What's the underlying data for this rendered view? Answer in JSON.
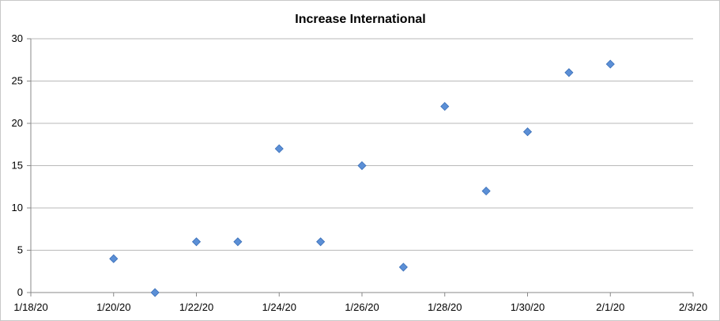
{
  "chart_data": {
    "type": "scatter",
    "title": "Increase International",
    "xlabel": "",
    "ylabel": "",
    "x": [
      "1/20/20",
      "1/21/20",
      "1/22/20",
      "1/23/20",
      "1/24/20",
      "1/25/20",
      "1/26/20",
      "1/27/20",
      "1/28/20",
      "1/29/20",
      "1/30/20",
      "1/31/20",
      "2/1/20"
    ],
    "series": [
      {
        "name": "Increase International",
        "values": [
          4,
          0,
          6,
          6,
          17,
          6,
          15,
          3,
          22,
          12,
          19,
          26,
          27
        ]
      }
    ],
    "x_ticks": [
      "1/18/20",
      "1/20/20",
      "1/22/20",
      "1/24/20",
      "1/26/20",
      "1/28/20",
      "1/30/20",
      "2/1/20",
      "2/3/20"
    ],
    "y_ticks": [
      "0",
      "5",
      "10",
      "15",
      "20",
      "25",
      "30"
    ],
    "ylim": [
      0,
      30
    ],
    "xlim_days": [
      0,
      16
    ],
    "x_origin": "1/18/20",
    "grid": true,
    "legend": "none",
    "marker": "diamond",
    "marker_color": "#5b8fd6"
  }
}
